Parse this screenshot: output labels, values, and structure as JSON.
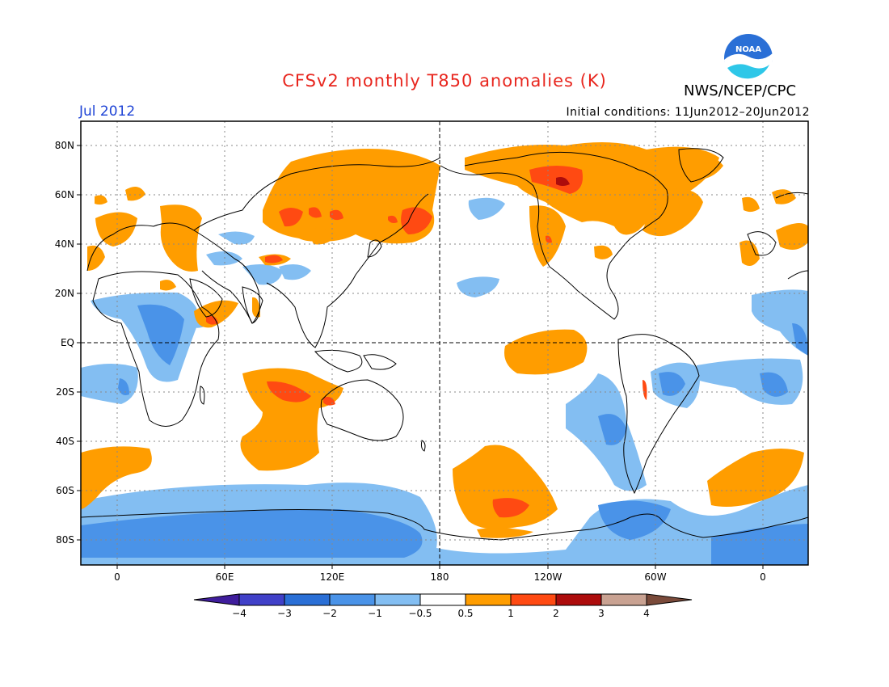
{
  "title": "CFSv2 monthly T850 anomalies (K)",
  "agency": "NWS/NCEP/CPC",
  "logo_text": "NOAA",
  "valid_month": "Jul 2012",
  "initial_conditions": "Initial conditions: 11Jun2012–20Jun2012",
  "axes": {
    "lat_labels": [
      "80N",
      "60N",
      "40N",
      "20N",
      "EQ",
      "20S",
      "40S",
      "60S",
      "80S"
    ],
    "lon_labels": [
      "0",
      "60E",
      "120E",
      "180",
      "120W",
      "60W",
      "0"
    ]
  },
  "colorbar": {
    "labels": [
      "−4",
      "−3",
      "−2",
      "−1",
      "−0.5",
      "0.5",
      "1",
      "2",
      "3",
      "4"
    ],
    "colors": [
      "#3f1d9c",
      "#4040c8",
      "#2a6fd6",
      "#4a93e8",
      "#83bef2",
      "#ffffff",
      "#ff9d00",
      "#ff4a12",
      "#ad0c0c",
      "#c9a292",
      "#7a4a3a"
    ]
  },
  "palette": {
    "warm1": "#ff9d00",
    "warm2": "#ff4a12",
    "cool1": "#83bef2",
    "cool2": "#4a93e8",
    "cool3": "#2a6fd6"
  }
}
